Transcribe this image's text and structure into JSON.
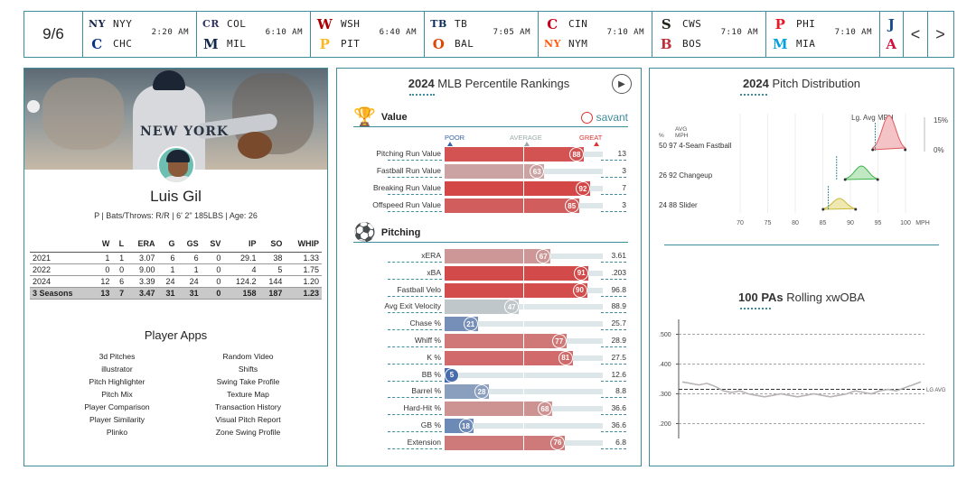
{
  "scoreboard": {
    "date": "9/6",
    "games": [
      {
        "away": "NYY",
        "home": "CHC",
        "time": "2:20 AM",
        "away_color": "#132448",
        "home_color": "#0e3386",
        "away_glyph": "NY",
        "home_glyph": "C"
      },
      {
        "away": "COL",
        "home": "MIL",
        "time": "6:10 AM",
        "away_color": "#333366",
        "home_color": "#12284b",
        "away_glyph": "CR",
        "home_glyph": "M"
      },
      {
        "away": "WSH",
        "home": "PIT",
        "time": "6:40 AM",
        "away_color": "#ab0003",
        "home_color": "#fdb827",
        "away_glyph": "W",
        "home_glyph": "P"
      },
      {
        "away": "TB",
        "home": "BAL",
        "time": "7:05 AM",
        "away_color": "#092c5c",
        "home_color": "#df4601",
        "away_glyph": "TB",
        "home_glyph": "O"
      },
      {
        "away": "CIN",
        "home": "NYM",
        "time": "7:10 AM",
        "away_color": "#c6011f",
        "home_color": "#ff5910",
        "away_glyph": "C",
        "home_glyph": "NY"
      },
      {
        "away": "CWS",
        "home": "BOS",
        "time": "7:10 AM",
        "away_color": "#27251f",
        "home_color": "#bd3039",
        "away_glyph": "S",
        "home_glyph": "B"
      },
      {
        "away": "PHI",
        "home": "MIA",
        "time": "7:10 AM",
        "away_color": "#e81828",
        "home_color": "#00a3e0",
        "away_glyph": "P",
        "home_glyph": "M"
      },
      {
        "away": "",
        "home": "",
        "time": "",
        "away_color": "#134a8e",
        "home_color": "#ce1141",
        "away_glyph": "J",
        "home_glyph": "A"
      }
    ],
    "prev_label": "<",
    "next_label": ">"
  },
  "player": {
    "name": "Luis Gil",
    "info": "P | Bats/Throws: R/R | 6' 2\" 185LBS | Age: 26",
    "jersey_text": "NEW YORK",
    "stats_headers": [
      "",
      "W",
      "L",
      "ERA",
      "G",
      "GS",
      "SV",
      "IP",
      "SO",
      "WHIP"
    ],
    "stats_rows": [
      [
        "2021",
        "1",
        "1",
        "3.07",
        "6",
        "6",
        "0",
        "29.1",
        "38",
        "1.33"
      ],
      [
        "2022",
        "0",
        "0",
        "9.00",
        "1",
        "1",
        "0",
        "4",
        "5",
        "1.75"
      ],
      [
        "2024",
        "12",
        "6",
        "3.39",
        "24",
        "24",
        "0",
        "124.2",
        "144",
        "1.20"
      ]
    ],
    "stats_total": [
      "3 Seasons",
      "13",
      "7",
      "3.47",
      "31",
      "31",
      "0",
      "158",
      "187",
      "1.23"
    ],
    "apps_title": "Player Apps",
    "apps": [
      "3d Pitches",
      "Random Video",
      "illustrator",
      "Shifts",
      "Pitch Highlighter",
      "Swing Take Profile",
      "Pitch Mix",
      "Texture Map",
      "Player Comparison",
      "Transaction History",
      "Player Similarity",
      "Visual Pitch Report",
      "Plinko",
      "Zone Swing Profile"
    ]
  },
  "percentile": {
    "title_year": "2024",
    "title_rest": " MLB Percentile Rankings",
    "play_icon": "play-icon",
    "brand": "savant",
    "value_section": "Value",
    "pitching_section": "Pitching",
    "scale": {
      "poor": "POOR",
      "average": "AVERAGE",
      "great": "GREAT"
    },
    "value_rows": [
      {
        "label": "Pitching Run Value",
        "pct": 88,
        "value": "13"
      },
      {
        "label": "Fastball Run Value",
        "pct": 63,
        "value": "3"
      },
      {
        "label": "Breaking Run Value",
        "pct": 92,
        "value": "7"
      },
      {
        "label": "Offspeed Run Value",
        "pct": 85,
        "value": "3"
      }
    ],
    "pitching_rows": [
      {
        "label": "xERA",
        "pct": 67,
        "value": "3.61"
      },
      {
        "label": "xBA",
        "pct": 91,
        "value": ".203"
      },
      {
        "label": "Fastball Velo",
        "pct": 90,
        "value": "96.8"
      },
      {
        "label": "Avg Exit Velocity",
        "pct": 47,
        "value": "88.9"
      },
      {
        "label": "Chase %",
        "pct": 21,
        "value": "25.7"
      },
      {
        "label": "Whiff %",
        "pct": 77,
        "value": "28.9"
      },
      {
        "label": "K %",
        "pct": 81,
        "value": "27.5"
      },
      {
        "label": "BB %",
        "pct": 5,
        "value": "12.6"
      },
      {
        "label": "Barrel %",
        "pct": 28,
        "value": "8.8"
      },
      {
        "label": "Hard-Hit %",
        "pct": 68,
        "value": "36.6"
      },
      {
        "label": "GB %",
        "pct": 18,
        "value": "36.6"
      },
      {
        "label": "Extension",
        "pct": 76,
        "value": "6.8"
      }
    ]
  },
  "pitch_dist": {
    "title_year": "2024",
    "title_rest": " Pitch Distribution",
    "lg_avg_label": "Lg. Avg MPH",
    "col_pct": "%",
    "col_avg": "AVG",
    "col_mph": "MPH",
    "right_top": "15%",
    "right_bottom": "0%",
    "axis_unit": "MPH",
    "pitches": [
      {
        "pct": "50",
        "mph": "97",
        "name": "4-Seam Fastball",
        "color": "#e05a60",
        "fill": "#f4c3c5",
        "lg": 94.5,
        "mean": 97
      },
      {
        "pct": "26",
        "mph": "92",
        "name": "Changeup",
        "color": "#3cb44a",
        "fill": "#bfe8c3",
        "lg": 87.5,
        "mean": 92
      },
      {
        "pct": "24",
        "mph": "88",
        "name": "Slider",
        "color": "#c9b93a",
        "fill": "#efe8b0",
        "lg": 86,
        "mean": 88
      }
    ],
    "ticks": [
      "70",
      "75",
      "80",
      "85",
      "90",
      "95",
      "100"
    ]
  },
  "rolling": {
    "title_bold": "100 PAs",
    "title_rest": " Rolling xwOBA",
    "y_ticks": [
      ".500",
      ".400",
      ".300",
      ".200"
    ],
    "lg_label": "LG AVG",
    "lg_avg": 0.315
  },
  "chart_data": [
    {
      "type": "bar",
      "title": "2024 MLB Percentile Rankings",
      "categories": [
        "Pitching Run Value",
        "Fastball Run Value",
        "Breaking Run Value",
        "Offspeed Run Value",
        "xERA",
        "xBA",
        "Fastball Velo",
        "Avg Exit Velocity",
        "Chase %",
        "Whiff %",
        "K %",
        "BB %",
        "Barrel %",
        "Hard-Hit %",
        "GB %",
        "Extension"
      ],
      "values": [
        88,
        63,
        92,
        85,
        67,
        91,
        90,
        47,
        21,
        77,
        81,
        5,
        28,
        68,
        18,
        76
      ],
      "ylim": [
        0,
        100
      ]
    },
    {
      "type": "area",
      "title": "2024 Pitch Distribution",
      "series": [
        {
          "name": "4-Seam Fastball",
          "values": [
            97
          ]
        },
        {
          "name": "Changeup",
          "values": [
            92
          ]
        },
        {
          "name": "Slider",
          "values": [
            88
          ]
        }
      ],
      "xlabel": "MPH",
      "xlim": [
        70,
        100
      ]
    },
    {
      "type": "line",
      "title": "100 PAs Rolling xwOBA",
      "values": [
        0.34,
        0.335,
        0.33,
        0.335,
        0.325,
        0.31,
        0.305,
        0.31,
        0.3,
        0.295,
        0.29,
        0.295,
        0.3,
        0.295,
        0.29,
        0.295,
        0.3,
        0.295,
        0.29,
        0.295,
        0.3,
        0.31,
        0.305,
        0.3,
        0.31,
        0.315,
        0.31,
        0.32,
        0.33,
        0.34
      ],
      "ylim": [
        0.15,
        0.55
      ],
      "lg_avg": 0.315
    }
  ]
}
